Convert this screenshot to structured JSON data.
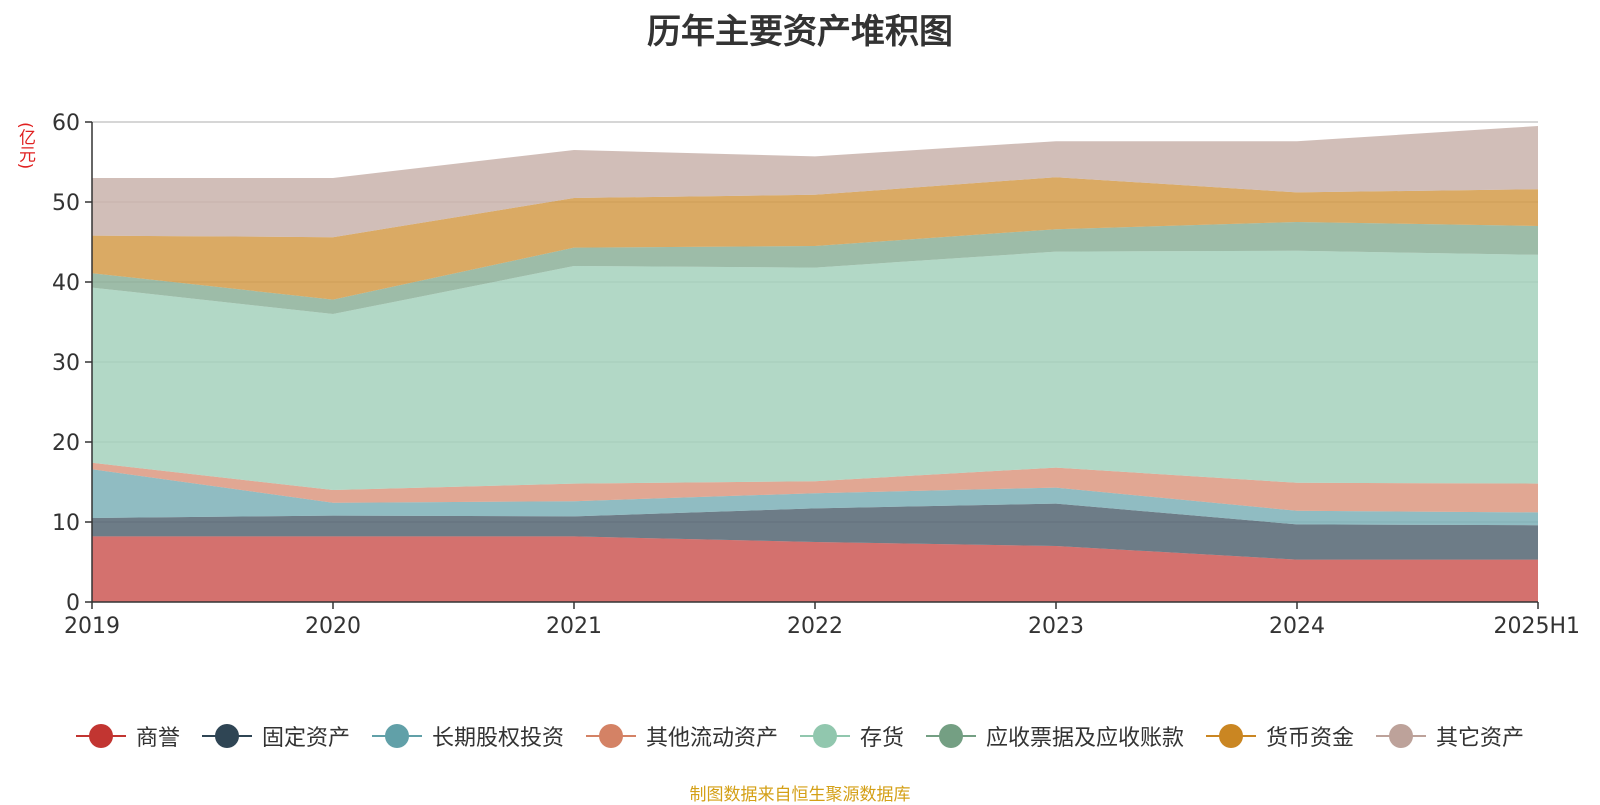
{
  "title": "历年主要资产堆积图",
  "source_note": "制图数据来自恒生聚源数据库",
  "chart_data": {
    "type": "area",
    "stacked": true,
    "title": "历年主要资产堆积图",
    "unit": "(亿元)",
    "categories": [
      "2019",
      "2020",
      "2021",
      "2022",
      "2023",
      "2024",
      "2025H1"
    ],
    "ylim": [
      0,
      60
    ],
    "yticks": [
      0,
      10,
      20,
      30,
      40,
      50,
      60
    ],
    "grid": true,
    "legend_position": "bottom",
    "series": [
      {
        "name": "商誉",
        "color": "#c23531",
        "values": [
          8.2,
          8.2,
          8.2,
          7.5,
          7.0,
          5.3,
          5.3
        ]
      },
      {
        "name": "固定资产",
        "color": "#2f4554",
        "values": [
          2.3,
          2.6,
          2.5,
          4.2,
          5.3,
          4.4,
          4.3
        ]
      },
      {
        "name": "长期股权投资",
        "color": "#61a0a8",
        "values": [
          6.1,
          1.6,
          1.9,
          1.9,
          2.0,
          1.7,
          1.6
        ]
      },
      {
        "name": "其他流动资产",
        "color": "#d48265",
        "values": [
          0.8,
          1.6,
          2.2,
          1.5,
          2.5,
          3.5,
          3.6
        ]
      },
      {
        "name": "存货",
        "color": "#91c7ae",
        "values": [
          21.9,
          22.0,
          27.2,
          26.7,
          27.0,
          29.0,
          28.6
        ]
      },
      {
        "name": "应收票据及应收账款",
        "color": "#749f83",
        "values": [
          1.8,
          1.8,
          2.3,
          2.7,
          2.8,
          3.6,
          3.6
        ]
      },
      {
        "name": "货币资金",
        "color": "#ca8622",
        "values": [
          4.7,
          7.8,
          6.2,
          6.4,
          6.5,
          3.7,
          4.6
        ]
      },
      {
        "name": "其它资产",
        "color": "#bda29a",
        "values": [
          7.2,
          7.4,
          6.0,
          4.8,
          4.5,
          6.4,
          7.9
        ]
      }
    ]
  }
}
